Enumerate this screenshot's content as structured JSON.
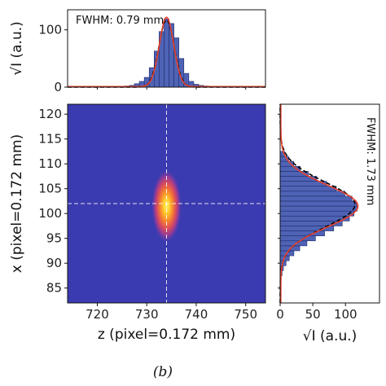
{
  "chart_data": [
    {
      "type": "heatmap",
      "name": "beam-profile",
      "xlabel": "z (pixel=0.172 mm)",
      "ylabel": "x (pixel=0.172 mm)",
      "xlim": [
        714,
        754
      ],
      "ylim": [
        82,
        122
      ],
      "xticks": [
        "720",
        "730",
        "740",
        "750"
      ],
      "yticks": [
        "85",
        "90",
        "95",
        "100",
        "105",
        "110",
        "115",
        "120"
      ],
      "background_color": "#3a3bb0",
      "peak": {
        "z": 734,
        "x": 101.5
      },
      "sigma": {
        "z": 1.2,
        "x": 2.9
      },
      "crosshair": {
        "z": 734,
        "x": 102
      },
      "crosshair_color": "#ffffff"
    },
    {
      "type": "bar",
      "name": "z-projection",
      "ylabel": "√I (a.u.)",
      "xlim": [
        714,
        754
      ],
      "ylim": [
        0,
        135
      ],
      "yticks": [
        "0",
        "100"
      ],
      "annotation": "FWHM: 0.79 mm",
      "center": 734,
      "bins": [
        725,
        726,
        727,
        728,
        729,
        730,
        731,
        732,
        733,
        734,
        735,
        736,
        737,
        738,
        739,
        740,
        741,
        742,
        743
      ],
      "values": [
        1,
        2,
        3,
        6,
        10,
        17,
        34,
        63,
        97,
        119,
        111,
        86,
        50,
        24,
        10,
        5,
        3,
        2,
        1
      ],
      "fit_peak": 121,
      "fit_sigma": 1.45,
      "colors": {
        "bar": "#4f63b5",
        "edge": "#1f2a6b",
        "fit": "#e8402b",
        "gauss": "#000000"
      }
    },
    {
      "type": "bar",
      "name": "x-projection",
      "xlabel": "√I (a.u.)",
      "xlim": [
        0,
        152
      ],
      "ylim": [
        82,
        122
      ],
      "xticks": [
        "0",
        "50",
        "100"
      ],
      "annotation": "FWHM: 1.73 mm",
      "center": 101.5,
      "bins": [
        88,
        89,
        90,
        91,
        92,
        93,
        94,
        95,
        96,
        97,
        98,
        99,
        100,
        101,
        102,
        103,
        104,
        105,
        106,
        107,
        108,
        109,
        110,
        111,
        112
      ],
      "values": [
        3,
        5,
        9,
        14,
        21,
        30,
        41,
        54,
        68,
        82,
        95,
        106,
        113,
        118,
        117,
        110,
        99,
        86,
        71,
        56,
        43,
        31,
        21,
        13,
        7
      ],
      "fit_peak": 118,
      "fit_sigma": 4.2,
      "colors": {
        "bar": "#4f63b5",
        "edge": "#1f2a6b",
        "fit": "#e8402b",
        "gauss": "#000000"
      }
    }
  ],
  "caption": "(b)"
}
